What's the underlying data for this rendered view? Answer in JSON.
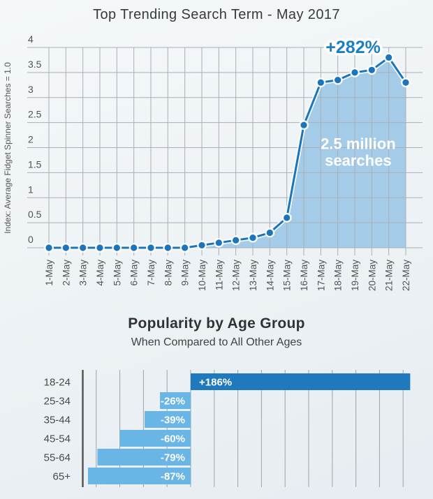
{
  "page": {
    "background_top": "#f4f8fa",
    "background_bottom": "#e6ecf1"
  },
  "chart_data": [
    {
      "type": "area",
      "title": "Top Trending Search Term - May 2017",
      "ylabel": "Index: Average Fidget Spinner Searches = 1.0",
      "xlabel": "",
      "categories": [
        "1-May",
        "2-May",
        "3-May",
        "4-May",
        "5-May",
        "6-May",
        "7-May",
        "8-May",
        "9-May",
        "10-May",
        "11-May",
        "12-May",
        "13-May",
        "14-May",
        "15-May",
        "16-May",
        "17-May",
        "18-May",
        "19-May",
        "20-May",
        "21-May",
        "22-May"
      ],
      "values": [
        0,
        0,
        0,
        0,
        0,
        0,
        0,
        0,
        0,
        0.05,
        0.1,
        0.15,
        0.2,
        0.3,
        0.6,
        2.45,
        3.3,
        3.35,
        3.5,
        3.55,
        3.8,
        3.3
      ],
      "ylim": [
        0,
        4
      ],
      "yticks": [
        0,
        0.5,
        1,
        1.5,
        2,
        2.5,
        3,
        3.5,
        4
      ],
      "grid": true,
      "legend": "none",
      "annotations": [
        {
          "lines": [
            "+282%"
          ],
          "at_x": 17.9,
          "at_y": 3.89,
          "color": "#1a80c4",
          "font_size": 25,
          "halo": true
        },
        {
          "lines": [
            "2.5 million",
            "searches"
          ],
          "at_x": 18.2,
          "at_y": 1.97,
          "color": "#ffffff",
          "font_size": 22,
          "halo": false
        }
      ],
      "colors": {
        "line": "#1c74bb",
        "marker": "#1c74bb",
        "fill": "#a4cbe8",
        "grid": "#abafb3",
        "tick_text": "#515254",
        "axis_title_text": "#55565a",
        "halo": "#ffffff"
      }
    },
    {
      "type": "bar",
      "orientation": "horizontal",
      "title": "Popularity by Age Group",
      "subtitle": "When Compared to All Other Ages",
      "categories": [
        "18-24",
        "25-34",
        "35-44",
        "45-54",
        "55-64",
        "65+"
      ],
      "values": [
        186,
        -26,
        -39,
        -60,
        -79,
        -87
      ],
      "value_labels": [
        "+186%",
        "-26%",
        "-39%",
        "-60%",
        "-79%",
        "-87%"
      ],
      "xlim": [
        -92,
        196
      ],
      "gridline_step_pct": 20,
      "grid": true,
      "colors": {
        "positive_bar": "#2079bd",
        "negative_bar": "#69b5e5",
        "grid": "#9fa3a7",
        "axis": "#55565a",
        "value_text": "#ffffff",
        "category_text": "#48494b"
      }
    }
  ]
}
